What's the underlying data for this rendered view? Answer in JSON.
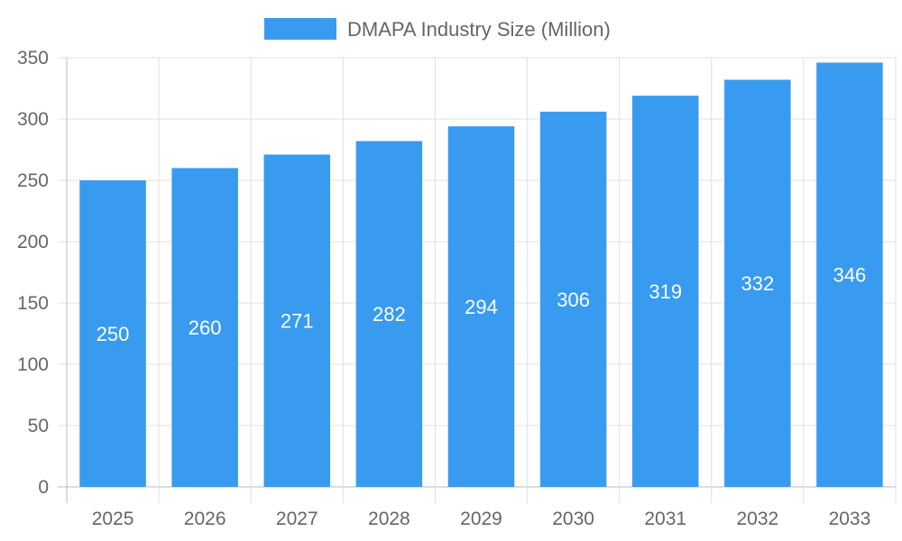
{
  "chart_data": {
    "type": "bar",
    "categories": [
      "2025",
      "2026",
      "2027",
      "2028",
      "2029",
      "2030",
      "2031",
      "2032",
      "2033"
    ],
    "series": [
      {
        "name": "DMAPA Industry Size (Million)",
        "values": [
          250,
          260,
          271,
          282,
          294,
          306,
          319,
          332,
          346
        ],
        "color": "#389bf0"
      }
    ],
    "ylim": [
      0,
      350
    ],
    "yticks": [
      0,
      50,
      100,
      150,
      200,
      250,
      300,
      350
    ],
    "grid": true,
    "legend_position": "top",
    "data_labels": true,
    "xlabel": "",
    "ylabel": ""
  }
}
